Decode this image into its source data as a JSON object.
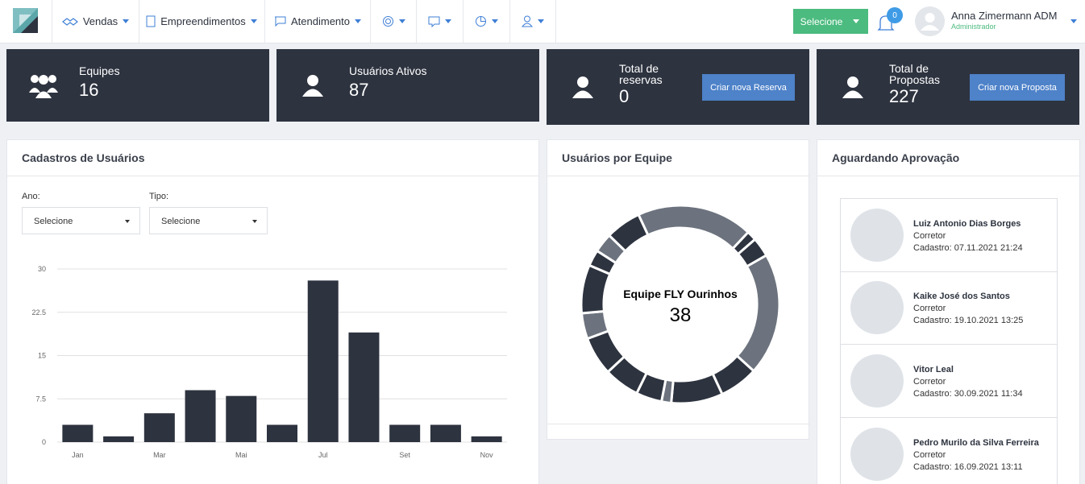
{
  "navbar": {
    "menu": [
      "Vendas",
      "Empreendimentos",
      "Atendimento"
    ],
    "select_button": "Selecione",
    "notification_count": "0",
    "user_name": "Anna Zimermann ADM",
    "user_role": "Administrador"
  },
  "stats": [
    {
      "label": "Equipes",
      "value": 16
    },
    {
      "label": "Usuários Ativos",
      "value": 87
    },
    {
      "label": "Total de reservas",
      "value": 0,
      "button": "Criar nova Reserva"
    },
    {
      "label": "Total de Propostas",
      "value": 227,
      "button": "Criar nova Proposta"
    }
  ],
  "registrations_panel": {
    "title": "Cadastros de Usuários",
    "filters": [
      {
        "label": "Ano:",
        "value": "Selecione"
      },
      {
        "label": "Tipo:",
        "value": "Selecione"
      }
    ]
  },
  "teams_panel": {
    "title": "Usuários por Equipe"
  },
  "chart_data": [
    {
      "type": "bar",
      "categories": [
        "Jan",
        null,
        "Mar",
        null,
        "Mai",
        null,
        "Jul",
        null,
        "Set",
        null,
        "Nov"
      ],
      "values": [
        3,
        1,
        5,
        9,
        8,
        3,
        28,
        19,
        3,
        3,
        1
      ],
      "color": "#2d333f",
      "ylim": [
        0,
        30
      ],
      "yticks": [
        0,
        7.5,
        15,
        22.5,
        30
      ],
      "grid": true
    },
    {
      "type": "pie",
      "donut": true,
      "values": [
        36,
        3,
        6,
        38,
        12,
        16,
        3,
        8,
        11,
        12,
        8,
        15,
        5,
        6,
        11
      ],
      "colors": [
        "#6c737e",
        "#2d333f",
        "#2d333f",
        "#6c737e",
        "#2d333f",
        "#2d333f",
        "#6c737e",
        "#2d333f",
        "#2d333f",
        "#2d333f",
        "#6c737e",
        "#2d333f",
        "#2d333f",
        "#6c737e",
        "#2d333f"
      ],
      "center_label": "Equipe FLY Ourinhos",
      "center_value": 38
    }
  ],
  "approval_panel": {
    "title": "Aguardando Aprovação",
    "people": [
      {
        "name": "Luiz Antonio Dias Borges",
        "role": "Corretor",
        "registered": "Cadastro: 07.11.2021 21:24"
      },
      {
        "name": "Kaike José dos Santos",
        "role": "Corretor",
        "registered": "Cadastro: 19.10.2021 13:25"
      },
      {
        "name": "Vitor Leal",
        "role": "Corretor",
        "registered": "Cadastro: 30.09.2021 11:34"
      },
      {
        "name": "Pedro Murilo da Silva Ferreira",
        "role": "Corretor",
        "registered": "Cadastro: 16.09.2021 13:11"
      }
    ]
  }
}
